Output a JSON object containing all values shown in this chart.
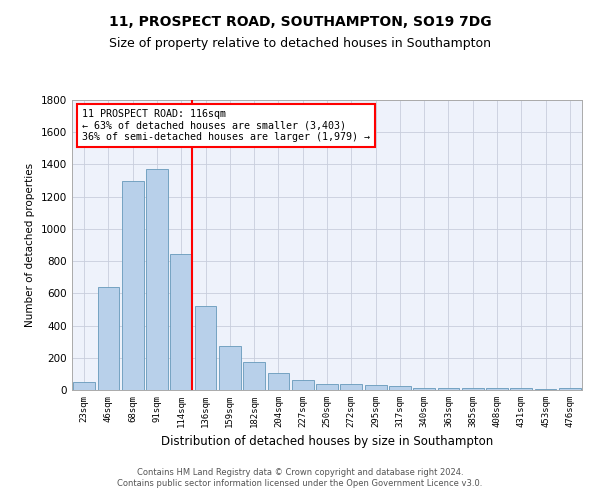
{
  "title": "11, PROSPECT ROAD, SOUTHAMPTON, SO19 7DG",
  "subtitle": "Size of property relative to detached houses in Southampton",
  "xlabel": "Distribution of detached houses by size in Southampton",
  "ylabel": "Number of detached properties",
  "categories": [
    "23sqm",
    "46sqm",
    "68sqm",
    "91sqm",
    "114sqm",
    "136sqm",
    "159sqm",
    "182sqm",
    "204sqm",
    "227sqm",
    "250sqm",
    "272sqm",
    "295sqm",
    "317sqm",
    "340sqm",
    "363sqm",
    "385sqm",
    "408sqm",
    "431sqm",
    "453sqm",
    "476sqm"
  ],
  "values": [
    50,
    640,
    1300,
    1370,
    845,
    520,
    275,
    175,
    105,
    65,
    40,
    38,
    30,
    22,
    15,
    10,
    10,
    10,
    10,
    5,
    12
  ],
  "bar_color": "#b8d0ea",
  "bar_edge_color": "#6699bb",
  "vline_color": "red",
  "vline_index": 4,
  "annotation_title": "11 PROSPECT ROAD: 116sqm",
  "annotation_line1": "← 63% of detached houses are smaller (3,403)",
  "annotation_line2": "36% of semi-detached houses are larger (1,979) →",
  "annotation_box_color": "red",
  "ylim": [
    0,
    1800
  ],
  "yticks": [
    0,
    200,
    400,
    600,
    800,
    1000,
    1200,
    1400,
    1600,
    1800
  ],
  "bg_color": "#eef2fb",
  "grid_color": "#c8cedd",
  "title_fontsize": 10,
  "subtitle_fontsize": 9,
  "footer1": "Contains HM Land Registry data © Crown copyright and database right 2024.",
  "footer2": "Contains public sector information licensed under the Open Government Licence v3.0."
}
